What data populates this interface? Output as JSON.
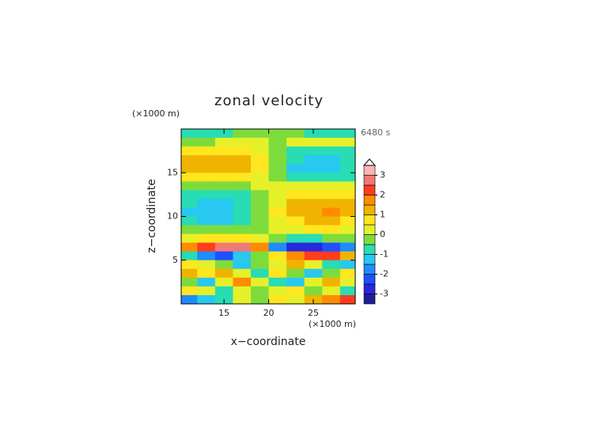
{
  "chart_data": {
    "type": "contour",
    "title": "zonal velocity",
    "timestamp": "6480 s",
    "xlabel": "x−coordinate",
    "ylabel": "z−coordinate",
    "xunit": "(×1000 m)",
    "yunit": "(×1000 m)",
    "xlim": [
      10.2,
      29.7
    ],
    "ylim": [
      0,
      20
    ],
    "xticks": [
      15,
      20,
      25
    ],
    "yticks": [
      5,
      10,
      15
    ],
    "x": [
      11,
      13,
      15,
      17,
      19,
      21,
      23,
      25,
      27,
      29
    ],
    "y": [
      19.5,
      18.5,
      17.5,
      16.5,
      15.5,
      14.5,
      13.5,
      12.5,
      11.5,
      10.5,
      9.5,
      8.5,
      7.5,
      6.5,
      5.5,
      4.5,
      3.5,
      2.5,
      1.5,
      0.5
    ],
    "values": [
      [
        -0.8,
        -0.6,
        -0.6,
        -0.4,
        -0.2,
        -0.2,
        -0.4,
        -0.6,
        -0.6,
        -0.8
      ],
      [
        -0.2,
        -0.1,
        0,
        0,
        0.1,
        -0.1,
        0,
        0,
        0.1,
        0.2
      ],
      [
        0.6,
        0.8,
        0.8,
        0.6,
        0.3,
        -0.3,
        -0.6,
        -0.8,
        -0.8,
        -0.6
      ],
      [
        1.0,
        1.2,
        1.3,
        1.0,
        0.5,
        -0.5,
        -1.0,
        -1.3,
        -1.2,
        -1.0
      ],
      [
        1.0,
        1.3,
        1.4,
        1.1,
        0.5,
        -0.5,
        -1.1,
        -1.5,
        -1.3,
        -1.0
      ],
      [
        0.6,
        0.8,
        0.9,
        0.7,
        0.3,
        -0.3,
        -0.7,
        -0.9,
        -0.8,
        -0.6
      ],
      [
        -0.2,
        -0.3,
        -0.2,
        -0.1,
        0,
        0,
        0.2,
        0.3,
        0.3,
        0.2
      ],
      [
        -0.7,
        -0.9,
        -0.8,
        -0.6,
        -0.2,
        0.3,
        0.7,
        0.9,
        0.9,
        0.7
      ],
      [
        -1.0,
        -1.3,
        -1.2,
        -0.8,
        -0.3,
        0.4,
        1.0,
        1.3,
        1.3,
        1.0
      ],
      [
        -1.1,
        -1.5,
        -1.4,
        -1.0,
        -0.4,
        0.5,
        1.1,
        1.4,
        1.5,
        1.1
      ],
      [
        -0.9,
        -1.2,
        -1.1,
        -0.8,
        -0.3,
        0.4,
        0.9,
        1.2,
        1.2,
        0.9
      ],
      [
        -0.4,
        -0.5,
        -0.4,
        -0.3,
        -0.1,
        0.1,
        0.3,
        0.5,
        0.5,
        0.4
      ],
      [
        0.3,
        0.5,
        0.8,
        0.8,
        0.3,
        -0.4,
        -0.9,
        -0.6,
        -0.5,
        -0.4
      ],
      [
        1.5,
        2.2,
        2.7,
        2.6,
        1.5,
        -1.8,
        -2.8,
        -2.8,
        -2.5,
        -2.0
      ],
      [
        -1.0,
        -1.8,
        -2.2,
        -1.5,
        -0.5,
        0.8,
        1.8,
        2.4,
        2.0,
        1.2
      ],
      [
        0.5,
        0.2,
        -0.5,
        -1.2,
        -0.3,
        0.4,
        1.0,
        0.4,
        -0.6,
        -1.2
      ],
      [
        1.0,
        0.5,
        1.3,
        0.3,
        -0.8,
        0.6,
        -0.5,
        -1.3,
        -0.5,
        0.5
      ],
      [
        -0.5,
        -1.2,
        0.2,
        1.5,
        0.3,
        -0.8,
        -1.5,
        0.3,
        1.2,
        0.3
      ],
      [
        0.8,
        0.3,
        -0.6,
        0.4,
        -0.3,
        0.2,
        0.6,
        -0.5,
        0.2,
        -0.6
      ],
      [
        -1.8,
        -1.5,
        -0.8,
        0.2,
        -0.5,
        0.5,
        0.3,
        1.2,
        1.8,
        2.0
      ]
    ],
    "levels": [
      -3.5,
      -3,
      -2.5,
      -2,
      -1.5,
      -1,
      -0.5,
      0,
      0.5,
      1,
      1.5,
      2,
      2.5,
      3,
      3.5
    ],
    "colors": [
      "#1e1e96",
      "#2828dc",
      "#1e50ff",
      "#1e8cff",
      "#28c8f0",
      "#28dcb4",
      "#7ddc3c",
      "#e6f028",
      "#ffe61e",
      "#f0b400",
      "#ff8c00",
      "#ff3c1e",
      "#f07878",
      "#ffb4b4"
    ],
    "cbar_ticks": [
      -3,
      -2,
      -1,
      0,
      1,
      2,
      3
    ]
  }
}
